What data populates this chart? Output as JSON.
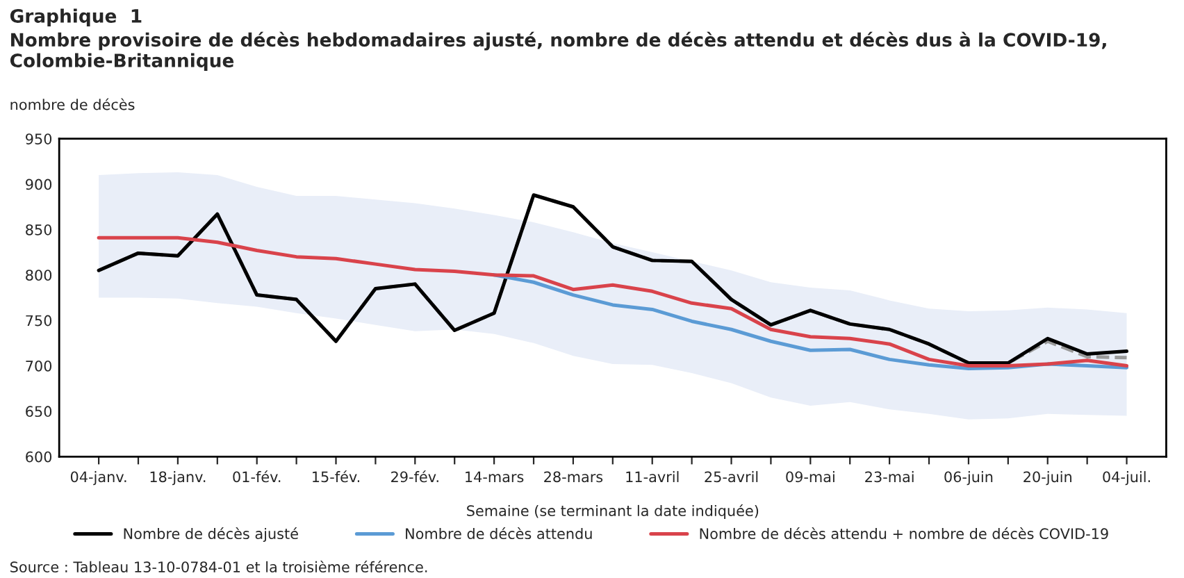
{
  "chart_data": {
    "type": "line",
    "title": "Graphique  1",
    "subtitle": "Nombre provisoire de décès hebdomadaires ajusté, nombre de décès attendu et décès dus à la COVID-19, Colombie-Britannique",
    "ylabel": "nombre de décès",
    "xlabel": "Semaine (se terminant la date indiquée)",
    "annotations": [
      "Source : Tableau 13-10-0784-01 et la troisième référence."
    ],
    "categories": [
      "04-janv.",
      null,
      "18-janv.",
      null,
      "01-fév.",
      null,
      "15-fév.",
      null,
      "29-fév.",
      null,
      "14-mars",
      null,
      "28-mars",
      null,
      "11-avril",
      null,
      "25-avril",
      null,
      "09-mai",
      null,
      "23-mai",
      null,
      "06-juin",
      null,
      "20-juin",
      null,
      "04-juil."
    ],
    "series": [
      {
        "color": "#9a9a9a",
        "line_style": "dashed",
        "values": [
          805,
          824,
          821,
          867,
          778,
          773,
          727,
          785,
          790,
          739,
          758,
          888,
          875,
          831,
          816,
          815,
          773,
          745,
          761,
          746,
          740,
          724,
          703,
          703,
          727,
          710,
          709
        ]
      },
      {
        "name": "Nombre de décès ajusté",
        "color": "#000000",
        "values": [
          805,
          824,
          821,
          867,
          778,
          773,
          727,
          785,
          790,
          739,
          758,
          888,
          875,
          831,
          816,
          815,
          773,
          745,
          761,
          746,
          740,
          724,
          703,
          703,
          730,
          713,
          716
        ]
      },
      {
        "name": "Nombre de décès attendu",
        "color": "#5b9bd5",
        "values": [
          null,
          null,
          null,
          null,
          null,
          null,
          null,
          null,
          null,
          null,
          800,
          792,
          778,
          767,
          762,
          749,
          740,
          727,
          717,
          718,
          707,
          701,
          697,
          698,
          702,
          700,
          698
        ],
        "lower": [
          775,
          775,
          774,
          769,
          765,
          758,
          752,
          745,
          738,
          740,
          735,
          725,
          711,
          702,
          701,
          692,
          681,
          665,
          656,
          660,
          652,
          647,
          641,
          642,
          647,
          646,
          645
        ],
        "upper": [
          910,
          912,
          913,
          910,
          897,
          887,
          887,
          883,
          879,
          873,
          866,
          858,
          847,
          835,
          825,
          815,
          805,
          792,
          786,
          783,
          772,
          763,
          760,
          761,
          764,
          762,
          758
        ]
      },
      {
        "name": "Nombre de décès attendu + nombre de décès COVID-19",
        "color": "#d9434b",
        "values": [
          841,
          841,
          841,
          836,
          827,
          820,
          818,
          812,
          806,
          804,
          800,
          799,
          784,
          789,
          782,
          769,
          763,
          740,
          732,
          730,
          724,
          707,
          700,
          700,
          702,
          706,
          700
        ]
      }
    ],
    "ylim": [
      600,
      950
    ],
    "yticks": [
      600,
      650,
      700,
      750,
      800,
      850,
      900,
      950
    ],
    "grid": false,
    "legend": "bottom",
    "marker": "none"
  }
}
